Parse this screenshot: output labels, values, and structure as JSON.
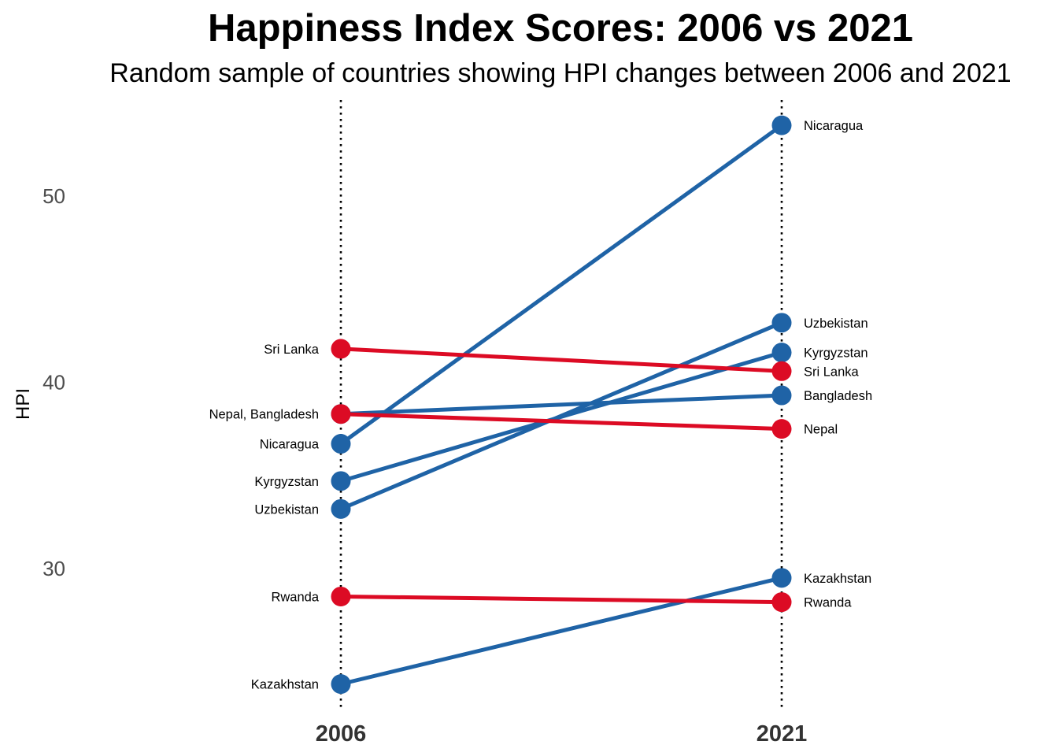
{
  "chart_data": {
    "type": "line",
    "title": "Happiness Index Scores: 2006 vs 2021",
    "subtitle": "Random sample of countries showing HPI changes between 2006 and 2021",
    "ylabel": "HPI",
    "xlabel": "",
    "categories": [
      "2006",
      "2021"
    ],
    "y_ticks": [
      30,
      40,
      50
    ],
    "ylim": [
      23.2,
      55.2
    ],
    "grid": false,
    "legend": "none",
    "colors": {
      "increase": "#1F63A6",
      "decrease": "#DC0B24"
    },
    "series": [
      {
        "name": "Nicaragua",
        "values": [
          36.7,
          53.8
        ],
        "direction": "increase"
      },
      {
        "name": "Uzbekistan",
        "values": [
          33.2,
          43.2
        ],
        "direction": "increase"
      },
      {
        "name": "Kyrgyzstan",
        "values": [
          34.7,
          41.6
        ],
        "direction": "increase"
      },
      {
        "name": "Sri Lanka",
        "values": [
          41.8,
          40.6
        ],
        "direction": "decrease"
      },
      {
        "name": "Bangladesh",
        "values": [
          38.3,
          39.3
        ],
        "direction": "increase"
      },
      {
        "name": "Nepal",
        "values": [
          38.3,
          37.5
        ],
        "direction": "decrease"
      },
      {
        "name": "Kazakhstan",
        "values": [
          23.8,
          29.5
        ],
        "direction": "increase"
      },
      {
        "name": "Rwanda",
        "values": [
          28.5,
          28.2
        ],
        "direction": "decrease"
      }
    ],
    "left_labels": [
      {
        "text": "Sri Lanka",
        "value": 41.8
      },
      {
        "text": "Nepal, Bangladesh",
        "value": 38.3
      },
      {
        "text": "Nicaragua",
        "value": 36.7
      },
      {
        "text": "Kyrgyzstan",
        "value": 34.7
      },
      {
        "text": "Uzbekistan",
        "value": 33.2
      },
      {
        "text": "Rwanda",
        "value": 28.5
      },
      {
        "text": "Kazakhstan",
        "value": 23.8
      }
    ],
    "right_labels": [
      {
        "text": "Nicaragua",
        "value": 53.8
      },
      {
        "text": "Uzbekistan",
        "value": 43.2
      },
      {
        "text": "Kyrgyzstan",
        "value": 41.6
      },
      {
        "text": "Sri Lanka",
        "value": 40.6
      },
      {
        "text": "Bangladesh",
        "value": 39.3
      },
      {
        "text": "Nepal",
        "value": 37.5
      },
      {
        "text": "Kazakhstan",
        "value": 29.5
      },
      {
        "text": "Rwanda",
        "value": 28.2
      }
    ]
  }
}
